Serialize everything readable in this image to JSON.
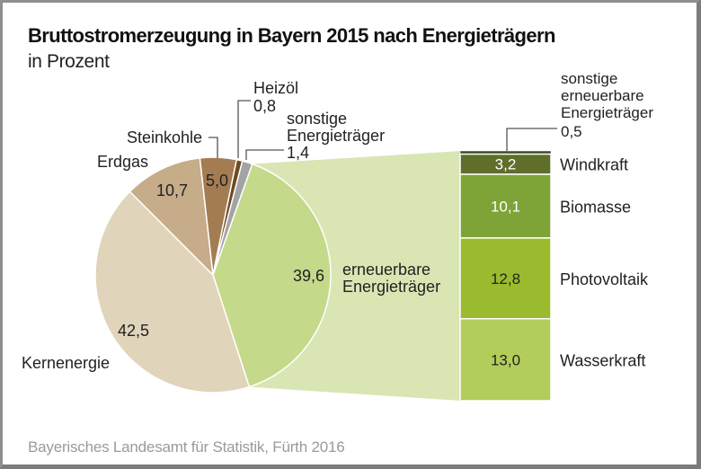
{
  "header": {
    "title": "Bruttostromerzeugung in Bayern 2015 nach Energieträgern",
    "subtitle": "in Prozent"
  },
  "footer": {
    "source": "Bayerisches Landesamt für Statistik, Fürth 2016"
  },
  "chart_data": [
    {
      "type": "pie",
      "title": "Bruttostromerzeugung in Bayern 2015 nach Energieträgern",
      "subtitle": "in Prozent",
      "unit": "%",
      "slices": [
        {
          "label": "erneuerbare Energieträger",
          "label_lines": [
            "erneuerbare",
            "Energieträger"
          ],
          "value": 39.6,
          "value_text": "39,6",
          "color": "#c5d98a"
        },
        {
          "label": "Kernenergie",
          "label_lines": [
            "Kernenergie"
          ],
          "value": 42.5,
          "value_text": "42,5",
          "color": "#e0d4ba"
        },
        {
          "label": "Erdgas",
          "label_lines": [
            "Erdgas"
          ],
          "value": 10.7,
          "value_text": "10,7",
          "color": "#c6ac88"
        },
        {
          "label": "Steinkohle",
          "label_lines": [
            "Steinkohle"
          ],
          "value": 5.0,
          "value_text": "5,0",
          "color": "#a47c52"
        },
        {
          "label": "Heizöl",
          "label_lines": [
            "Heizöl"
          ],
          "value": 0.8,
          "value_text": "0,8",
          "color": "#6e4a1e"
        },
        {
          "label": "sonstige Energieträger",
          "label_lines": [
            "sonstige",
            "Energieträger"
          ],
          "value": 1.4,
          "value_text": "1,4",
          "color": "#a3a3a3"
        }
      ],
      "connector_color": "#d9e6b3"
    },
    {
      "type": "bar",
      "stacked": true,
      "title": "erneuerbare Energieträger",
      "total": 39.6,
      "segments": [
        {
          "label": "sonstige erneuerbare Energieträger",
          "label_lines": [
            "sonstige",
            "erneuerbare",
            "Energieträger",
            "0,5"
          ],
          "value": 0.5,
          "value_text": "0,5",
          "color": "#3f4a1f"
        },
        {
          "label": "Windkraft",
          "value": 3.2,
          "value_text": "3,2",
          "color": "#5f6e2b"
        },
        {
          "label": "Biomasse",
          "value": 10.1,
          "value_text": "10,1",
          "color": "#7ea337"
        },
        {
          "label": "Photovoltaik",
          "value": 12.8,
          "value_text": "12,8",
          "color": "#9bbb2e"
        },
        {
          "label": "Wasserkraft",
          "value": 13.0,
          "value_text": "13,0",
          "color": "#b2cd5a"
        }
      ]
    }
  ]
}
